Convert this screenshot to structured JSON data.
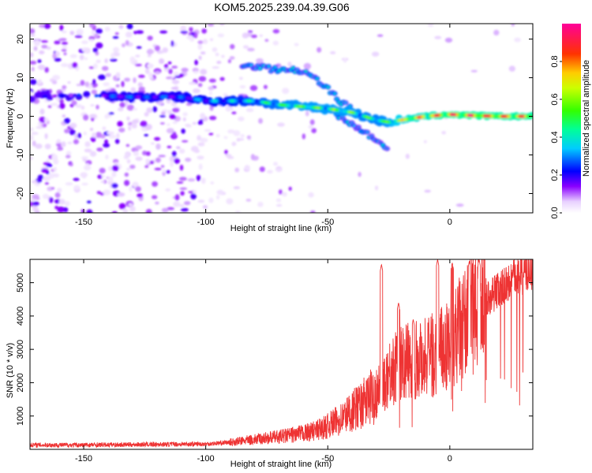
{
  "title": "KOM5.2025.239.04.39.G06",
  "chart_data": [
    {
      "type": "heatmap",
      "name": "spectrogram",
      "xlabel": "Height of straight line (km)",
      "ylabel": "Frequency (Hz)",
      "xlim": [
        -172,
        34
      ],
      "ylim": [
        -25,
        24
      ],
      "xticks": [
        -150,
        -100,
        -50,
        0
      ],
      "yticks": [
        20,
        10,
        0,
        -10,
        -20
      ],
      "ridge_x": [
        -172,
        -150,
        -130,
        -110,
        -100,
        -90,
        -80,
        -70,
        -60,
        -50,
        -45,
        -40,
        -35,
        -30,
        -25,
        -20,
        -10,
        0,
        10,
        20,
        34
      ],
      "ridge_y": [
        5,
        5.5,
        5,
        5,
        4,
        4,
        4,
        3,
        2.5,
        2,
        1.5,
        1,
        0,
        -1,
        -1.5,
        -1,
        0,
        0.5,
        0.2,
        0,
        0
      ],
      "ridge_amp": [
        0.2,
        0.25,
        0.3,
        0.3,
        0.35,
        0.4,
        0.45,
        0.55,
        0.6,
        0.6,
        0.6,
        0.6,
        0.55,
        0.55,
        0.6,
        0.75,
        0.85,
        0.95,
        0.95,
        0.92,
        0.9
      ],
      "upper_branch_x": [
        -85,
        -80,
        -70,
        -60,
        -55,
        -50,
        -45,
        -40
      ],
      "upper_branch_y": [
        13,
        13,
        12,
        12,
        10,
        7,
        4,
        2
      ],
      "lower_branch_x": [
        -50,
        -40,
        -30,
        -25
      ],
      "lower_branch_y": [
        2,
        -2,
        -6,
        -9.5
      ]
    },
    {
      "type": "colorbar",
      "name": "colorbar",
      "label": "Normalized spectral amplitude",
      "range": [
        0,
        1
      ],
      "ticks": [
        "0.0",
        "0.2",
        "0.4",
        "0.6",
        "0.8"
      ]
    },
    {
      "type": "line",
      "name": "snr",
      "xlabel": "Height of straight line (km)",
      "ylabel": "SNR (10 * v/v)",
      "xlim": [
        -172,
        34
      ],
      "ylim": [
        0,
        5700
      ],
      "xticks": [
        -150,
        -100,
        -50,
        0
      ],
      "yticks": [
        1000,
        2000,
        3000,
        4000,
        5000
      ],
      "color": "#ee3333",
      "envelope_x": [
        -172,
        -150,
        -120,
        -100,
        -90,
        -80,
        -70,
        -60,
        -55,
        -50,
        -45,
        -40,
        -35,
        -30,
        -28,
        -25,
        -20,
        -15,
        -10,
        -5,
        0,
        5,
        10,
        15,
        20,
        25,
        30,
        34
      ],
      "envelope_y": [
        130,
        130,
        150,
        160,
        210,
        300,
        380,
        480,
        560,
        700,
        900,
        1150,
        1400,
        1700,
        1900,
        2300,
        2550,
        2700,
        2800,
        2850,
        3200,
        3700,
        4100,
        4500,
        4800,
        5050,
        5250,
        5400
      ],
      "spikes_x": [
        -28,
        -21,
        -15,
        -5,
        1,
        8,
        12,
        26
      ],
      "spikes_y": [
        5550,
        4400,
        3900,
        5700,
        5600,
        5650,
        5700,
        5300
      ]
    }
  ]
}
